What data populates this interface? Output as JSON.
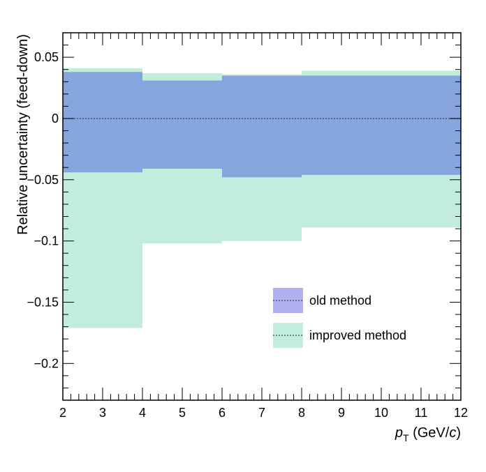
{
  "chart_data": {
    "type": "area",
    "xlabel": "p_T (GeV/c)",
    "xlabel_parts": {
      "p": "p",
      "sub": "T",
      "pre": " (GeV/",
      "c": "c",
      "post": ")"
    },
    "ylabel": "Relative uncertainty (feed-down)",
    "xlim": [
      2,
      12
    ],
    "ylim": [
      -0.23,
      0.07
    ],
    "x_ticks": [
      2,
      3,
      4,
      5,
      6,
      7,
      8,
      9,
      10,
      11,
      12
    ],
    "x_tick_labels": [
      "2",
      "3",
      "4",
      "5",
      "6",
      "7",
      "8",
      "9",
      "10",
      "11",
      "12"
    ],
    "y_ticks": [
      0.05,
      0,
      -0.05,
      -0.1,
      -0.15,
      -0.2
    ],
    "y_tick_labels": [
      "0.05",
      "0",
      "−0.05",
      "−0.1",
      "−0.15",
      "−0.2"
    ],
    "bin_edges": [
      2,
      4,
      6,
      8,
      12
    ],
    "series": [
      {
        "name": "improved method",
        "color": "#c2ecdc",
        "upper": [
          0.041,
          0.037,
          0.036,
          0.039
        ],
        "lower": [
          -0.171,
          -0.102,
          -0.1,
          -0.089
        ]
      },
      {
        "name": "old method",
        "color": "#86a5dc",
        "upper": [
          0.038,
          0.031,
          0.035,
          0.035
        ],
        "lower": [
          -0.044,
          -0.041,
          -0.048,
          -0.046
        ]
      }
    ],
    "reference_line": {
      "y": 0,
      "style": "dotted",
      "color": "#555555"
    },
    "legend": {
      "position": "center-right",
      "entries": [
        {
          "label": "old method",
          "color": "#b1b1f2"
        },
        {
          "label": "improved method",
          "color": "#c2ecdc"
        }
      ]
    },
    "grid": false
  }
}
